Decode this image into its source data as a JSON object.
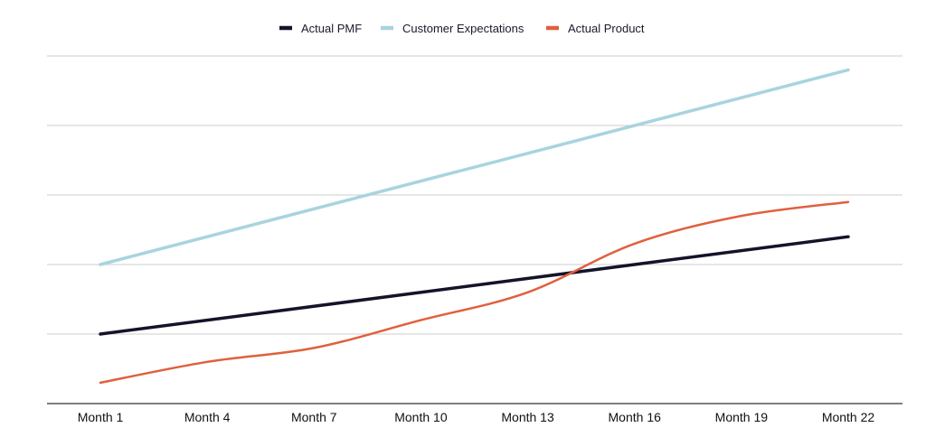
{
  "chart_data": {
    "type": "line",
    "title": "",
    "xlabel": "",
    "ylabel": "",
    "categories": [
      "Month 1",
      "Month 4",
      "Month 7",
      "Month 10",
      "Month 13",
      "Month 16",
      "Month 19",
      "Month 22"
    ],
    "y_ticks_shown": false,
    "ylim": [
      0,
      5
    ],
    "grid": true,
    "legend_position": "top-center",
    "series": [
      {
        "name": "Actual PMF",
        "color": "#13132b",
        "smooth": false,
        "x": [
          1,
          22
        ],
        "y": [
          1.0,
          2.4
        ]
      },
      {
        "name": "Customer Expectations",
        "color": "#a8d4de",
        "smooth": false,
        "x": [
          1,
          22
        ],
        "y": [
          2.0,
          4.8
        ]
      },
      {
        "name": "Actual Product",
        "color": "#e0603e",
        "smooth": true,
        "x": [
          1,
          4,
          7,
          10,
          13,
          16,
          19,
          22
        ],
        "y": [
          0.3,
          0.6,
          0.8,
          1.2,
          1.6,
          2.3,
          2.7,
          2.9
        ]
      }
    ]
  }
}
